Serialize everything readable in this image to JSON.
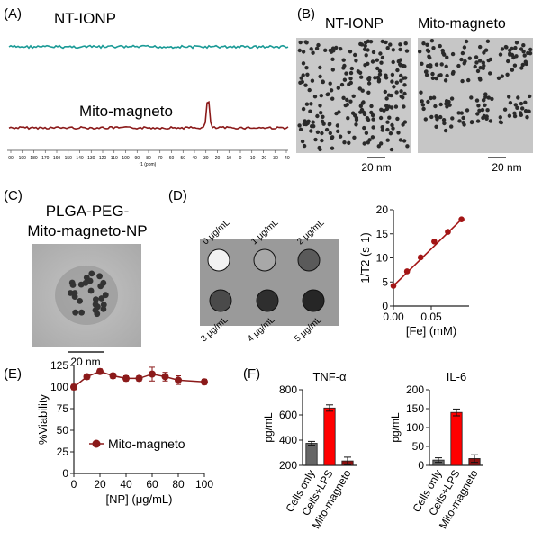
{
  "panels": {
    "A": {
      "letter": "(A)",
      "trace_top_label": "NT-IONP",
      "trace_bottom_label": "Mito-magneto",
      "axis_ticks": [
        "00",
        "190",
        "180",
        "170",
        "160",
        "150",
        "140",
        "130",
        "120",
        "110",
        "100",
        "90",
        "80",
        "70",
        "60",
        "50",
        "40",
        "30",
        "20",
        "10",
        "0",
        "-10",
        "-20",
        "-30",
        "-40"
      ],
      "axis_label": "f1 (ppm)",
      "colors": {
        "top": "#1a9a96",
        "bottom": "#8b1a1a"
      }
    },
    "B": {
      "letter": "(B)",
      "left_label": "NT-IONP",
      "right_label": "Mito-magneto",
      "left_scale": "20 nm",
      "right_scale": "20 nm"
    },
    "C": {
      "letter": "(C)",
      "title_line1": "PLGA-PEG-",
      "title_line2": "Mito-magneto-NP",
      "scale": "20 nm"
    },
    "D": {
      "letter": "(D)",
      "well_labels": [
        "0 μg/mL",
        "1 μg/mL",
        "2 μg/mL",
        "3 μg/mL",
        "4 μg/mL",
        "5 μg/mL"
      ],
      "well_gray": [
        "#f2f2f2",
        "#a8a8a8",
        "#5a5a5a",
        "#4a4a4a",
        "#2e2e2e",
        "#262626"
      ]
    },
    "E": {
      "letter": "(E)"
    },
    "F": {
      "letter": "(F)"
    }
  },
  "chart_data": [
    {
      "id": "D-relaxivity",
      "type": "scatter",
      "xlabel": "[Fe] (mM)",
      "ylabel": "1/T2 (s-1)",
      "xlim": [
        0,
        0.1
      ],
      "ylim": [
        0,
        20
      ],
      "x_ticks": [
        "0.00",
        "0.05"
      ],
      "y_ticks": [
        "0",
        "5",
        "10",
        "15",
        "20"
      ],
      "x": [
        0.0,
        0.018,
        0.036,
        0.054,
        0.072,
        0.09
      ],
      "y": [
        4.2,
        7.2,
        10.1,
        13.4,
        15.4,
        18.0
      ],
      "fit": [
        [
          0.0,
          4.2
        ],
        [
          0.09,
          18.0
        ]
      ],
      "color": "#a31515"
    },
    {
      "id": "E-viability",
      "type": "line",
      "xlabel": "[NP] (μg/mL)",
      "ylabel": "%Viability",
      "xlim": [
        0,
        100
      ],
      "ylim": [
        0,
        125
      ],
      "x_ticks": [
        "0",
        "20",
        "40",
        "60",
        "80",
        "100"
      ],
      "y_ticks": [
        "0",
        "25",
        "50",
        "75",
        "100",
        "125"
      ],
      "series": [
        {
          "name": "Mito-magneto",
          "x": [
            0,
            10,
            20,
            30,
            40,
            50,
            60,
            70,
            80,
            100
          ],
          "values": [
            100,
            112,
            118,
            113,
            110,
            110,
            115,
            112,
            108,
            106
          ],
          "errors": [
            3,
            3,
            3,
            3,
            3,
            3,
            8,
            5,
            5,
            3
          ]
        }
      ],
      "color": "#8b1a1a"
    },
    {
      "id": "F-TNF",
      "type": "bar",
      "title": "TNF-α",
      "ylabel": "pg/mL",
      "ylim": [
        200,
        800
      ],
      "y_ticks": [
        "200",
        "400",
        "600",
        "800"
      ],
      "categories": [
        "Cells only",
        "Cells+LPS",
        "Mito-magneto"
      ],
      "values": [
        375,
        655,
        235
      ],
      "errors": [
        15,
        25,
        30
      ],
      "colors": [
        "#666666",
        "#ff0000",
        "#8b1010"
      ]
    },
    {
      "id": "F-IL6",
      "type": "bar",
      "title": "IL-6",
      "ylabel": "pg/mL",
      "ylim": [
        0,
        200
      ],
      "y_ticks": [
        "0",
        "50",
        "100",
        "150",
        "200"
      ],
      "categories": [
        "Cells only",
        "Cells+LPS",
        "Mito-magneto"
      ],
      "values": [
        14,
        140,
        18
      ],
      "errors": [
        6,
        9,
        10
      ],
      "colors": [
        "#666666",
        "#ff0000",
        "#8b1010"
      ]
    }
  ]
}
